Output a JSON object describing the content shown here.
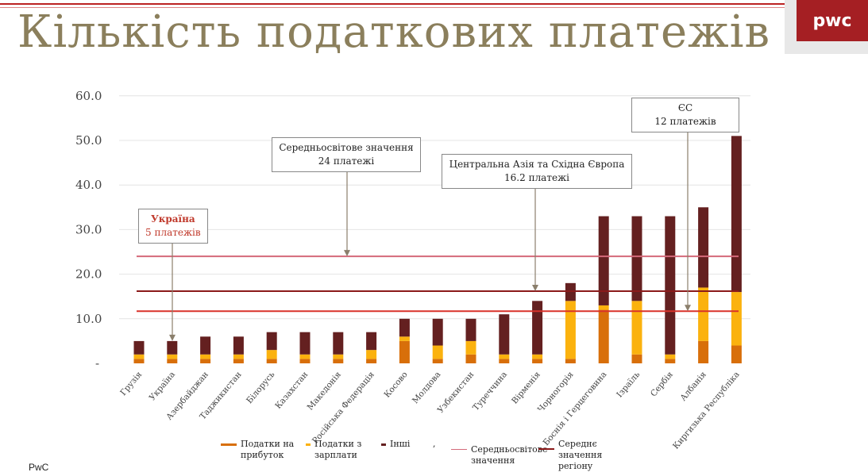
{
  "title": "Кількість податкових платежів",
  "logo": "pwc",
  "footer": "PwC",
  "colors": {
    "profit": "#d86f0a",
    "labor": "#fbb20e",
    "other": "#642020",
    "world": "#d46a7a",
    "region": "#8b1a1a",
    "eu": "#d9322a"
  },
  "annotations": {
    "ukraine": {
      "title": "Україна",
      "text": "5 платежів"
    },
    "world": {
      "title": "Середньосвітове значення",
      "text": "24 платежі"
    },
    "region": {
      "title": "Центральна Азія та Східна Європа",
      "text": "16.2 платежі"
    },
    "eu": {
      "title": "ЄС",
      "text": "12 платежів"
    }
  },
  "chart_data": {
    "type": "bar",
    "stacked": true,
    "categories": [
      "Грузія",
      "Україна",
      "Азербайджан",
      "Таджикистан",
      "Білорусь",
      "Казахстан",
      "Македонія",
      "Російська Федерація",
      "Косово",
      "Молдова",
      "Узбекистан",
      "Туреччина",
      "Вірменія",
      "Чорногорія",
      "Боснія і Герцеговина",
      "Ізраїль",
      "Сербія",
      "Албанія",
      "Киргизька Республіка"
    ],
    "series": [
      {
        "name": "Податки на прибуток",
        "values": [
          1,
          1,
          1,
          1,
          1,
          1,
          1,
          1,
          5,
          1,
          2,
          1,
          1,
          1,
          12,
          2,
          1,
          5,
          4
        ]
      },
      {
        "name": "Податки з зарплати",
        "values": [
          1,
          1,
          1,
          1,
          2,
          1,
          1,
          2,
          1,
          3,
          3,
          1,
          1,
          13,
          1,
          12,
          1,
          12,
          12
        ]
      },
      {
        "name": "Інші",
        "values": [
          3,
          3,
          4,
          4,
          4,
          5,
          5,
          4,
          4,
          6,
          5,
          9,
          12,
          4,
          20,
          19,
          31,
          18,
          35
        ]
      }
    ],
    "reference_lines": [
      {
        "name": "Середньосвітове значення",
        "value": 24
      },
      {
        "name": "Середнє значення регіону",
        "value": 16.2
      },
      {
        "name": "ЄС",
        "value": 11.7
      }
    ],
    "yticks": [
      "-",
      "10.0",
      "20.0",
      "30.0",
      "40.0",
      "50.0",
      "60.0"
    ],
    "ylim": [
      0,
      60
    ],
    "legend_placement": "bottom",
    "legend_extra": ","
  }
}
